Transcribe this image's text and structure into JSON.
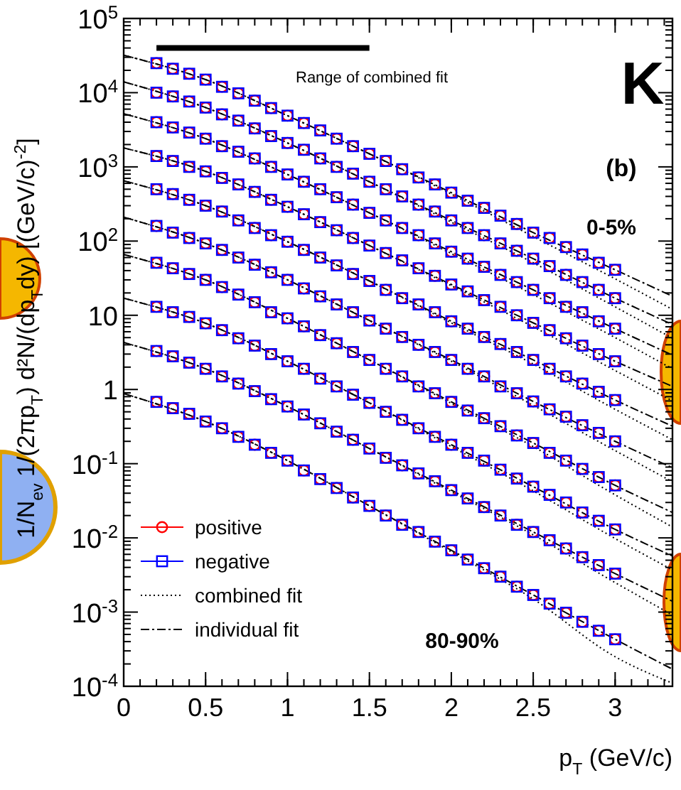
{
  "chart_data": {
    "type": "scatter",
    "xlabel": "p$_{T}$ (GeV/c)",
    "ylabel": "1/N$_{ev}$ 1/(2πp$_{T}$) d²N/(dp$_{T}$dy) [(GeV/c)$^{-2}$]",
    "annotations": [
      "Range of combined fit",
      "K",
      "(b)",
      "0-5%",
      "80-90%"
    ],
    "log": "y",
    "legend": "bottom left",
    "xlim": [
      0,
      3.35
    ],
    "xticks": [
      0,
      0.5,
      1,
      1.5,
      2,
      2.5,
      3
    ],
    "ylim": [
      0.0001,
      100000
    ],
    "yticks": [
      {
        "value": 0.0001,
        "label": "10$^{-4}$"
      },
      {
        "value": 0.001,
        "label": "10$^{-3}$"
      },
      {
        "value": 0.01,
        "label": "10$^{-2}$"
      },
      {
        "value": 0.1,
        "label": "10$^{-1}$"
      },
      1,
      10,
      {
        "value": 100,
        "label": "10$^{2}$"
      },
      {
        "value": 1000,
        "label": "10$^{3}$"
      },
      {
        "value": 10000,
        "label": "10$^{4}$"
      },
      {
        "value": 100000,
        "label": "10$^{5}$"
      }
    ],
    "x": [
      0.2,
      0.3,
      0.4,
      0.5,
      0.6,
      0.7,
      0.8,
      0.9,
      1.0,
      1.1,
      1.2,
      1.3,
      1.4,
      1.5,
      1.6,
      1.7,
      1.8,
      1.9,
      2.0,
      2.1,
      2.2,
      2.3,
      2.4,
      2.5,
      2.6,
      2.7,
      2.8,
      2.9,
      3.0
    ],
    "series": [
      {
        "type": "line",
        "color": "#000000",
        "marker": "none",
        "line_style": "solid",
        "x": [
          0.2,
          1.5
        ],
        "values": [
          40000,
          40000
        ]
      },
      {
        "name": "positive",
        "color": "#ff0000",
        "marker": "circle",
        "values": [
          25000,
          21000,
          18000,
          15000,
          12000,
          9800,
          7800,
          6200,
          4900,
          3900,
          3100,
          2400,
          1900,
          1500,
          1200,
          930,
          720,
          580,
          450,
          350,
          280,
          220,
          170,
          130,
          110,
          83,
          66,
          51,
          41
        ]
      },
      {
        "color": "#ff0000",
        "marker": "circle",
        "values": [
          10000,
          8900,
          7600,
          6300,
          5100,
          4200,
          3300,
          2600,
          2100,
          1700,
          1300,
          1000,
          810,
          630,
          500,
          400,
          310,
          250,
          190,
          150,
          120,
          93,
          74,
          58,
          46,
          35,
          28,
          22,
          17
        ]
      },
      {
        "color": "#ff0000",
        "marker": "circle",
        "values": [
          4000,
          3400,
          2900,
          2400,
          1900,
          1600,
          1300,
          1000,
          790,
          630,
          500,
          390,
          310,
          240,
          190,
          150,
          120,
          93,
          72,
          58,
          45,
          35,
          28,
          22,
          17,
          13,
          11,
          8.3,
          6.6
        ]
      },
      {
        "color": "#ff0000",
        "marker": "circle",
        "values": [
          1400,
          1200,
          1000,
          870,
          710,
          580,
          460,
          360,
          290,
          230,
          180,
          140,
          110,
          87,
          69,
          55,
          43,
          34,
          26,
          21,
          16,
          13,
          10,
          7.9,
          6.3,
          4.9,
          3.9,
          3.0,
          2.4
        ]
      },
      {
        "color": "#ff0000",
        "marker": "circle",
        "values": [
          500,
          430,
          360,
          300,
          250,
          190,
          150,
          120,
          98,
          76,
          60,
          47,
          36,
          29,
          22,
          17,
          14,
          11,
          8.3,
          6.6,
          5.1,
          4.1,
          3.2,
          2.5,
          1.9,
          1.5,
          1.2,
          0.93,
          0.72
        ]
      },
      {
        "color": "#ff0000",
        "marker": "circle",
        "values": [
          160,
          130,
          110,
          93,
          76,
          60,
          48,
          38,
          30,
          23,
          18,
          14,
          11,
          8.5,
          6.6,
          5.1,
          4.0,
          3.2,
          2.5,
          1.9,
          1.5,
          1.1,
          0.89,
          0.69,
          0.54,
          0.43,
          0.33,
          0.26,
          0.2
        ]
      },
      {
        "color": "#ff0000",
        "marker": "circle",
        "values": [
          51,
          43,
          36,
          30,
          24,
          19,
          15,
          11,
          9.1,
          7.1,
          5.4,
          4.2,
          3.2,
          2.5,
          1.9,
          1.5,
          1.1,
          0.89,
          0.68,
          0.52,
          0.41,
          0.32,
          0.24,
          0.19,
          0.14,
          0.11,
          0.085,
          0.066,
          0.051
        ]
      },
      {
        "color": "#ff0000",
        "marker": "circle",
        "values": [
          13,
          11,
          9.5,
          7.8,
          6.3,
          4.9,
          3.9,
          3.0,
          2.4,
          1.9,
          1.4,
          1.1,
          0.85,
          0.66,
          0.5,
          0.39,
          0.3,
          0.23,
          0.18,
          0.14,
          0.11,
          0.083,
          0.063,
          0.049,
          0.038,
          0.03,
          0.022,
          0.017,
          0.013
        ]
      },
      {
        "color": "#ff0000",
        "marker": "circle",
        "values": [
          3.3,
          2.8,
          2.3,
          1.9,
          1.5,
          1.2,
          0.95,
          0.74,
          0.59,
          0.46,
          0.35,
          0.27,
          0.21,
          0.16,
          0.12,
          0.095,
          0.074,
          0.058,
          0.044,
          0.034,
          0.026,
          0.02,
          0.015,
          0.012,
          0.0093,
          0.0072,
          0.0055,
          0.0043,
          0.0033
        ]
      },
      {
        "color": "#ff0000",
        "marker": "circle",
        "values": [
          0.68,
          0.56,
          0.47,
          0.37,
          0.3,
          0.23,
          0.18,
          0.14,
          0.11,
          0.081,
          0.062,
          0.047,
          0.035,
          0.027,
          0.02,
          0.015,
          0.012,
          0.0089,
          0.0068,
          0.0051,
          0.0039,
          0.003,
          0.0022,
          0.0017,
          0.0013,
          0.00098,
          0.00074,
          0.00056,
          0.00043
        ]
      },
      {
        "name": "negative",
        "color": "#0000ff",
        "marker": "square",
        "values": [
          25000,
          21000,
          18000,
          15000,
          12000,
          9800,
          7800,
          6200,
          4900,
          3900,
          3100,
          2400,
          1900,
          1500,
          1200,
          930,
          720,
          580,
          450,
          350,
          280,
          220,
          170,
          130,
          110,
          83,
          66,
          51,
          41
        ]
      },
      {
        "color": "#0000ff",
        "marker": "square",
        "values": [
          10000,
          8900,
          7600,
          6300,
          5100,
          4200,
          3300,
          2600,
          2100,
          1700,
          1300,
          1000,
          810,
          630,
          500,
          400,
          310,
          250,
          190,
          150,
          120,
          93,
          74,
          58,
          46,
          35,
          28,
          22,
          17
        ]
      },
      {
        "color": "#0000ff",
        "marker": "square",
        "values": [
          4000,
          3400,
          2900,
          2400,
          1900,
          1600,
          1300,
          1000,
          790,
          630,
          500,
          390,
          310,
          240,
          190,
          150,
          120,
          93,
          72,
          58,
          45,
          35,
          28,
          22,
          17,
          13,
          11,
          8.3,
          6.6
        ]
      },
      {
        "color": "#0000ff",
        "marker": "square",
        "values": [
          1400,
          1200,
          1000,
          870,
          710,
          580,
          460,
          360,
          290,
          230,
          180,
          140,
          110,
          87,
          69,
          55,
          43,
          34,
          26,
          21,
          16,
          13,
          10,
          7.9,
          6.3,
          4.9,
          3.9,
          3.0,
          2.4
        ]
      },
      {
        "color": "#0000ff",
        "marker": "square",
        "values": [
          500,
          430,
          360,
          300,
          250,
          190,
          150,
          120,
          98,
          76,
          60,
          47,
          36,
          29,
          22,
          17,
          14,
          11,
          8.3,
          6.6,
          5.1,
          4.1,
          3.2,
          2.5,
          1.9,
          1.5,
          1.2,
          0.93,
          0.72
        ]
      },
      {
        "color": "#0000ff",
        "marker": "square",
        "values": [
          160,
          130,
          110,
          93,
          76,
          60,
          48,
          38,
          30,
          23,
          18,
          14,
          11,
          8.5,
          6.6,
          5.1,
          4.0,
          3.2,
          2.5,
          1.9,
          1.5,
          1.1,
          0.89,
          0.69,
          0.54,
          0.43,
          0.33,
          0.26,
          0.2
        ]
      },
      {
        "color": "#0000ff",
        "marker": "square",
        "values": [
          51,
          43,
          36,
          30,
          24,
          19,
          15,
          11,
          9.1,
          7.1,
          5.4,
          4.2,
          3.2,
          2.5,
          1.9,
          1.5,
          1.1,
          0.89,
          0.68,
          0.52,
          0.41,
          0.32,
          0.24,
          0.19,
          0.14,
          0.11,
          0.085,
          0.066,
          0.051
        ]
      },
      {
        "color": "#0000ff",
        "marker": "square",
        "values": [
          13,
          11,
          9.5,
          7.8,
          6.3,
          4.9,
          3.9,
          3.0,
          2.4,
          1.9,
          1.4,
          1.1,
          0.85,
          0.66,
          0.5,
          0.39,
          0.3,
          0.23,
          0.18,
          0.14,
          0.11,
          0.083,
          0.063,
          0.049,
          0.038,
          0.03,
          0.022,
          0.017,
          0.013
        ]
      },
      {
        "color": "#0000ff",
        "marker": "square",
        "values": [
          3.3,
          2.8,
          2.3,
          1.9,
          1.5,
          1.2,
          0.95,
          0.74,
          0.59,
          0.46,
          0.35,
          0.27,
          0.21,
          0.16,
          0.12,
          0.095,
          0.074,
          0.058,
          0.044,
          0.034,
          0.026,
          0.02,
          0.015,
          0.012,
          0.0093,
          0.0072,
          0.0055,
          0.0043,
          0.0033
        ]
      },
      {
        "color": "#0000ff",
        "marker": "square",
        "values": [
          0.68,
          0.56,
          0.47,
          0.37,
          0.3,
          0.23,
          0.18,
          0.14,
          0.11,
          0.081,
          0.062,
          0.047,
          0.035,
          0.027,
          0.02,
          0.015,
          0.012,
          0.0089,
          0.0068,
          0.0051,
          0.0039,
          0.003,
          0.0022,
          0.0017,
          0.0013,
          0.00098,
          0.00074,
          0.00056,
          0.00043
        ]
      },
      {
        "name": "combined fit",
        "type": "line",
        "color": "#000000",
        "marker": "none",
        "line_style": "dotted",
        "x": [
          0,
          0.5,
          1,
          1.5,
          2,
          2.5,
          3,
          3.35
        ],
        "values": [
          32000,
          15000,
          4900,
          1500,
          430,
          115,
          31,
          12
        ]
      },
      {
        "type": "line",
        "color": "#000000",
        "marker": "none",
        "line_style": "dotted",
        "x": [
          0,
          0.5,
          1,
          1.5,
          2,
          2.5,
          3,
          3.35
        ],
        "values": [
          14000,
          6300,
          2100,
          630,
          180,
          51,
          13,
          4.9
        ]
      },
      {
        "type": "line",
        "color": "#000000",
        "marker": "none",
        "line_style": "dotted",
        "x": [
          0,
          0.5,
          1,
          1.5,
          2,
          2.5,
          3,
          3.35
        ],
        "values": [
          5200,
          2400,
          790,
          240,
          68,
          19,
          5.0,
          1.9
        ]
      },
      {
        "type": "line",
        "color": "#000000",
        "marker": "none",
        "line_style": "dotted",
        "x": [
          0,
          0.5,
          1,
          1.5,
          2,
          2.5,
          3,
          3.35
        ],
        "values": [
          1800,
          870,
          290,
          87,
          25,
          7.0,
          1.8,
          0.7
        ]
      },
      {
        "type": "line",
        "color": "#000000",
        "marker": "none",
        "line_style": "dotted",
        "x": [
          0,
          0.5,
          1,
          1.5,
          2,
          2.5,
          3,
          3.35
        ],
        "values": [
          650,
          300,
          98,
          29,
          7.9,
          2.2,
          0.54,
          0.21
        ]
      },
      {
        "type": "line",
        "color": "#000000",
        "marker": "none",
        "line_style": "dotted",
        "x": [
          0,
          0.5,
          1,
          1.5,
          2,
          2.5,
          3,
          3.35
        ],
        "values": [
          210,
          93,
          30,
          8.5,
          2.4,
          0.61,
          0.15,
          0.057
        ]
      },
      {
        "type": "line",
        "color": "#000000",
        "marker": "none",
        "line_style": "dotted",
        "x": [
          0,
          0.5,
          1,
          1.5,
          2,
          2.5,
          3,
          3.35
        ],
        "values": [
          66,
          30,
          9.1,
          2.5,
          0.65,
          0.17,
          0.038,
          0.014
        ]
      },
      {
        "type": "line",
        "color": "#000000",
        "marker": "none",
        "line_style": "dotted",
        "x": [
          0,
          0.5,
          1,
          1.5,
          2,
          2.5,
          3,
          3.35
        ],
        "values": [
          17,
          7.8,
          2.4,
          0.66,
          0.17,
          0.043,
          0.0098,
          0.0037
        ]
      },
      {
        "type": "line",
        "color": "#000000",
        "marker": "none",
        "line_style": "dotted",
        "x": [
          0,
          0.5,
          1,
          1.5,
          2,
          2.5,
          3,
          3.35
        ],
        "values": [
          4.3,
          1.9,
          0.59,
          0.16,
          0.042,
          0.011,
          0.0025,
          0.00091
        ]
      },
      {
        "type": "line",
        "color": "#000000",
        "marker": "none",
        "line_style": "dotted",
        "x": [
          0,
          0.5,
          1,
          1.5,
          2,
          2.5,
          3,
          3.35
        ],
        "values": [
          0.88,
          0.37,
          0.11,
          0.027,
          0.0065,
          0.0015,
          0.00025,
          0.00011
        ]
      },
      {
        "name": "individual fit",
        "type": "line",
        "color": "#000000",
        "marker": "none",
        "line_style": "dashed",
        "x": [
          0,
          0.5,
          1,
          1.5,
          2,
          2.5,
          3,
          3.35
        ],
        "values": [
          32000,
          15000,
          4900,
          1500,
          450,
          130,
          41,
          18
        ]
      },
      {
        "type": "line",
        "color": "#000000",
        "marker": "none",
        "line_style": "dashed",
        "x": [
          0,
          0.5,
          1,
          1.5,
          2,
          2.5,
          3,
          3.35
        ],
        "values": [
          14000,
          6300,
          2100,
          630,
          190,
          58,
          17,
          7.5
        ]
      },
      {
        "type": "line",
        "color": "#000000",
        "marker": "none",
        "line_style": "dashed",
        "x": [
          0,
          0.5,
          1,
          1.5,
          2,
          2.5,
          3,
          3.35
        ],
        "values": [
          5200,
          2400,
          790,
          240,
          72,
          22,
          6.6,
          2.9
        ]
      },
      {
        "type": "line",
        "color": "#000000",
        "marker": "none",
        "line_style": "dashed",
        "x": [
          0,
          0.5,
          1,
          1.5,
          2,
          2.5,
          3,
          3.35
        ],
        "values": [
          1800,
          870,
          290,
          87,
          26,
          7.9,
          2.4,
          1.1
        ]
      },
      {
        "type": "line",
        "color": "#000000",
        "marker": "none",
        "line_style": "dashed",
        "x": [
          0,
          0.5,
          1,
          1.5,
          2,
          2.5,
          3,
          3.35
        ],
        "values": [
          650,
          300,
          98,
          29,
          8.3,
          2.5,
          0.72,
          0.32
        ]
      },
      {
        "type": "line",
        "color": "#000000",
        "marker": "none",
        "line_style": "dashed",
        "x": [
          0,
          0.5,
          1,
          1.5,
          2,
          2.5,
          3,
          3.35
        ],
        "values": [
          210,
          93,
          30,
          8.5,
          2.5,
          0.69,
          0.2,
          0.088
        ]
      },
      {
        "type": "line",
        "color": "#000000",
        "marker": "none",
        "line_style": "dashed",
        "x": [
          0,
          0.5,
          1,
          1.5,
          2,
          2.5,
          3,
          3.35
        ],
        "values": [
          66,
          30,
          9.1,
          2.5,
          0.68,
          0.19,
          0.051,
          0.022
        ]
      },
      {
        "type": "line",
        "color": "#000000",
        "marker": "none",
        "line_style": "dashed",
        "x": [
          0,
          0.5,
          1,
          1.5,
          2,
          2.5,
          3,
          3.35
        ],
        "values": [
          17,
          7.8,
          2.4,
          0.66,
          0.18,
          0.049,
          0.013,
          0.0057
        ]
      },
      {
        "type": "line",
        "color": "#000000",
        "marker": "none",
        "line_style": "dashed",
        "x": [
          0,
          0.5,
          1,
          1.5,
          2,
          2.5,
          3,
          3.35
        ],
        "values": [
          4.3,
          1.9,
          0.59,
          0.16,
          0.044,
          0.012,
          0.0033,
          0.0014
        ]
      },
      {
        "type": "line",
        "color": "#000000",
        "marker": "none",
        "line_style": "dashed",
        "x": [
          0,
          0.5,
          1,
          1.5,
          2,
          2.5,
          3,
          3.35
        ],
        "values": [
          0.88,
          0.37,
          0.11,
          0.027,
          0.0068,
          0.0017,
          0.00043,
          0.00017
        ]
      }
    ]
  }
}
